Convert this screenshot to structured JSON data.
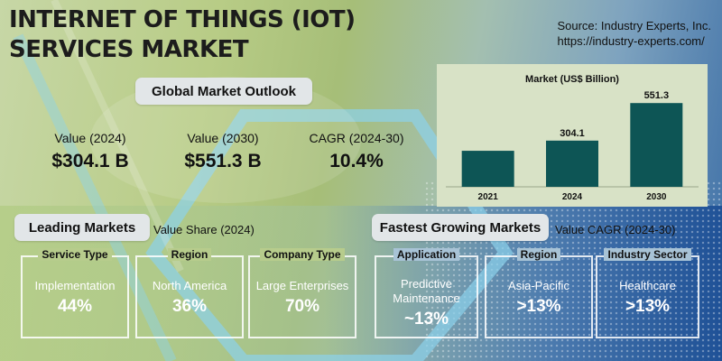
{
  "title_line1": "INTERNET OF THINGS (IOT)",
  "title_line2": "SERVICES MARKET",
  "source": {
    "line1": "Source: Industry Experts, Inc.",
    "line2": "https://industry-experts.com/"
  },
  "outlook": {
    "heading": "Global Market Outlook",
    "stats": [
      {
        "label": "Value (2024)",
        "value": "$304.1 B"
      },
      {
        "label": "Value (2030)",
        "value": "$551.3 B"
      },
      {
        "label": "CAGR (2024-30)",
        "value": "10.4%"
      }
    ]
  },
  "chart_data": {
    "type": "bar",
    "title": "Market (US$ Billion)",
    "categories": [
      "2021",
      "2024",
      "2030"
    ],
    "values": [
      null,
      304.1,
      551.3
    ],
    "value_labels": [
      "",
      "304.1",
      "551.3"
    ],
    "ylim": [
      0,
      600
    ],
    "bar_color": "#0d5555"
  },
  "leading": {
    "heading": "Leading Markets",
    "subheading": "Value Share (2024)",
    "boxes": [
      {
        "head": "Service Type",
        "name": "Implementation",
        "pct": "44%"
      },
      {
        "head": "Region",
        "name": "North America",
        "pct": "36%"
      },
      {
        "head": "Company Type",
        "name": "Large Enterprises",
        "pct": "70%"
      }
    ]
  },
  "fastest": {
    "heading": "Fastest Growing Markets",
    "subheading": "Value CAGR (2024-30)",
    "boxes": [
      {
        "head": "Application",
        "name": "Predictive Maintenance",
        "pct": "~13%"
      },
      {
        "head": "Region",
        "name": "Asia-Pacific",
        "pct": ">13%"
      },
      {
        "head": "Industry Sector",
        "name": "Healthcare",
        "pct": ">13%"
      }
    ]
  },
  "colors": {
    "accent_dark": "#0d5555",
    "panel": "#d8e2c6",
    "pill": "#e2e6e8"
  }
}
